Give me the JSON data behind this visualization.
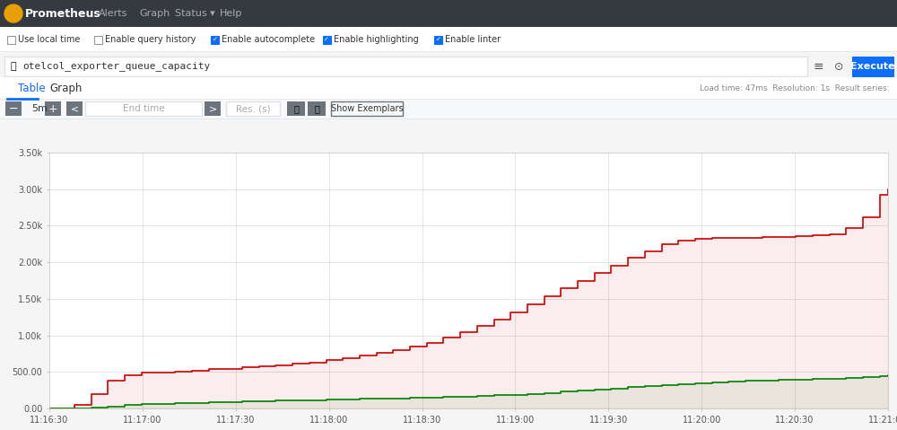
{
  "title": "Prometheus",
  "nav_items": [
    "Alerts",
    "Graph",
    "Status",
    "Help"
  ],
  "query": "otelcol_exporter_queue_capacity",
  "checkboxes": [
    "Use local time",
    "Enable query history",
    "Enable autocomplete",
    "Enable highlighting",
    "Enable linter"
  ],
  "checked": [
    false,
    false,
    true,
    true,
    true
  ],
  "tabs": [
    "Table",
    "Graph"
  ],
  "active_tab": "Graph",
  "x_labels": [
    "11:16:30",
    "11:17:00",
    "11:17:30",
    "11:18:00",
    "11:18:30",
    "11:19:00",
    "11:19:30",
    "11:20:00",
    "11:20:30",
    "11:21:00"
  ],
  "y_labels": [
    "0.00",
    "500.00",
    "1.00k",
    "1.50k",
    "2.00k",
    "2.50k",
    "3.00k",
    "3.50k"
  ],
  "y_values": [
    0,
    500,
    1000,
    1500,
    2000,
    2500,
    3000,
    3500
  ],
  "ylim": [
    0,
    3500
  ],
  "bg_color": "#ffffff",
  "nav_bg": "#2d3748",
  "chart_bg": "#ffffff",
  "grid_color": "#e0e0e0",
  "red_color": "#cc0000",
  "green_color": "#008000",
  "execute_btn_color": "#0d6efd",
  "load_time_text": "Load time: 47ms  Resolution: 1s  Result series:",
  "red_x": [
    0,
    0.3,
    0.5,
    0.7,
    0.9,
    1.1,
    1.5,
    1.7,
    1.9,
    2.1,
    2.3,
    2.5,
    2.7,
    2.9,
    3.1,
    3.3,
    3.5,
    3.7,
    3.9,
    4.1,
    4.3,
    4.5,
    4.7,
    4.9,
    5.1,
    5.3,
    5.5,
    5.7,
    5.9,
    6.1,
    6.3,
    6.5,
    6.7,
    6.9,
    7.1,
    7.3,
    7.5,
    7.7,
    7.9,
    8.1,
    8.3,
    8.5,
    8.7,
    8.9,
    9.1,
    9.3,
    9.5,
    9.7,
    9.9,
    10.0
  ],
  "red_y": [
    0,
    50,
    200,
    380,
    460,
    490,
    510,
    520,
    535,
    545,
    560,
    575,
    590,
    610,
    630,
    660,
    690,
    720,
    760,
    800,
    850,
    900,
    970,
    1050,
    1130,
    1220,
    1320,
    1430,
    1540,
    1650,
    1750,
    1850,
    1950,
    2060,
    2150,
    2250,
    2300,
    2320,
    2330,
    2340,
    2340,
    2345,
    2350,
    2360,
    2370,
    2380,
    2470,
    2620,
    2920,
    3000
  ],
  "green_x": [
    0,
    0.3,
    0.5,
    0.7,
    0.9,
    1.1,
    1.5,
    1.7,
    1.9,
    2.1,
    2.3,
    2.5,
    2.7,
    2.9,
    3.1,
    3.3,
    3.5,
    3.7,
    3.9,
    4.1,
    4.3,
    4.5,
    4.7,
    4.9,
    5.1,
    5.3,
    5.5,
    5.7,
    5.9,
    6.1,
    6.3,
    6.5,
    6.7,
    6.9,
    7.1,
    7.3,
    7.5,
    7.7,
    7.9,
    8.1,
    8.3,
    8.5,
    8.7,
    8.9,
    9.1,
    9.3,
    9.5,
    9.7,
    9.9,
    10.0
  ],
  "green_y": [
    0,
    5,
    15,
    30,
    50,
    65,
    75,
    80,
    85,
    90,
    95,
    100,
    105,
    110,
    115,
    120,
    125,
    130,
    135,
    140,
    145,
    150,
    155,
    160,
    170,
    180,
    190,
    200,
    215,
    230,
    245,
    260,
    275,
    290,
    305,
    320,
    335,
    350,
    360,
    370,
    380,
    385,
    390,
    395,
    400,
    410,
    420,
    430,
    440,
    450
  ]
}
